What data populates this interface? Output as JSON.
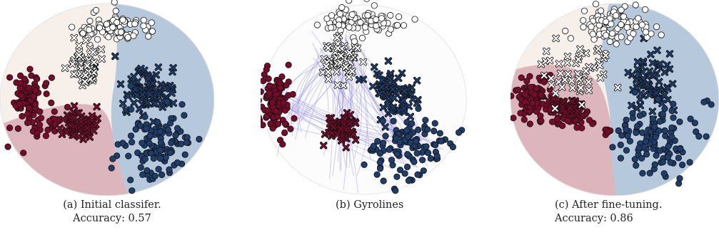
{
  "panels": [
    {
      "id": "a",
      "caption_line1": "(a) Initial classifer.",
      "caption_line2": "Accuracy: 0.57"
    },
    {
      "id": "b",
      "caption_line1": "(b) Gyrolines",
      "caption_line2": ""
    },
    {
      "id": "c",
      "caption_line1": "(c) After fine-tuning.",
      "caption_line2": "Accuracy: 0.86"
    }
  ],
  "colors": {
    "class_red": "#7a0a2a",
    "class_blue": "#1f3d6b",
    "class_white": "#ffffff",
    "region_red": "#ddb5bd",
    "region_blue": "#b6c8db",
    "region_white": "#f7efe9",
    "gyroline": "#8f86e6",
    "disk_outline": "#e6e6e6"
  }
}
